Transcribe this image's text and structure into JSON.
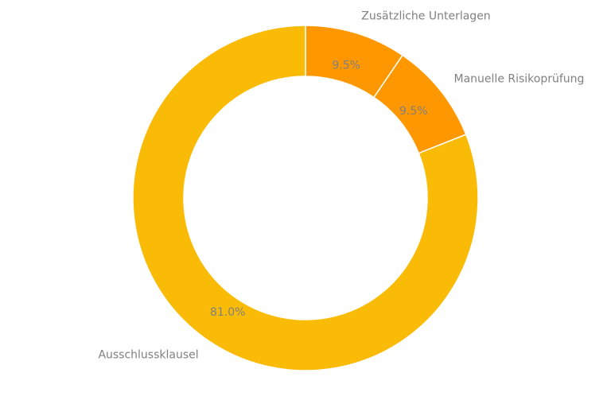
{
  "chart_data": {
    "type": "pie",
    "donut": true,
    "title": "",
    "slices": [
      {
        "label": "Zusätzliche Unterlagen",
        "value": 9.5,
        "percent_label": "9.5%",
        "color": "#ff9800"
      },
      {
        "label": "Manuelle Risikoprüfung",
        "value": 9.5,
        "percent_label": "9.5%",
        "color": "#ff9800"
      },
      {
        "label": "Ausschlussklausel",
        "value": 81.0,
        "percent_label": "81.0%",
        "color": "#f9bb06"
      }
    ],
    "start_angle": "12 o'clock",
    "direction": "clockwise",
    "legend": "none"
  }
}
